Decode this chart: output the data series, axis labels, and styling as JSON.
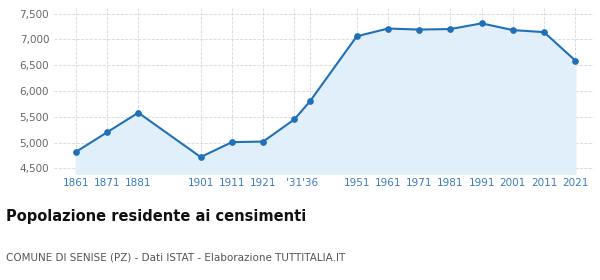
{
  "years": [
    1861,
    1871,
    1881,
    1901,
    1911,
    1921,
    1931,
    1936,
    1951,
    1961,
    1971,
    1981,
    1991,
    2001,
    2011,
    2021
  ],
  "population": [
    4820,
    5200,
    5580,
    4720,
    5010,
    5020,
    5450,
    5800,
    7060,
    7210,
    7190,
    7200,
    7310,
    7180,
    7140,
    6590
  ],
  "x_tick_positions": [
    1861,
    1871,
    1881,
    1901,
    1911,
    1921,
    1931,
    1936,
    1951,
    1961,
    1971,
    1981,
    1991,
    2001,
    2011,
    2021
  ],
  "x_tick_labels": [
    "1861",
    "1871",
    "1881",
    "1901",
    "1911",
    "1921",
    "'31",
    "'36",
    "1951",
    "1961",
    "1971",
    "1981",
    "1991",
    "2001",
    "2011",
    "2021"
  ],
  "xlim": [
    1854,
    2027
  ],
  "ylim": [
    4400,
    7600
  ],
  "yticks": [
    4500,
    5000,
    5500,
    6000,
    6500,
    7000,
    7500
  ],
  "line_color": "#2070b8",
  "fill_color": "#e0eff9",
  "marker_size": 4,
  "marker_facecolor": "#2070b8",
  "grid_color": "#d0d8e0",
  "background_color": "#ffffff",
  "title": "Popolazione residente ai censimenti",
  "title_fontsize": 10.5,
  "title_fontweight": "bold",
  "subtitle": "COMUNE DI SENISE (PZ) - Dati ISTAT - Elaborazione TUTTITALIA.IT",
  "subtitle_fontsize": 7.5,
  "tick_label_color": "#3a7bbf",
  "tick_fontsize": 7.5,
  "ytick_color": "#666666"
}
